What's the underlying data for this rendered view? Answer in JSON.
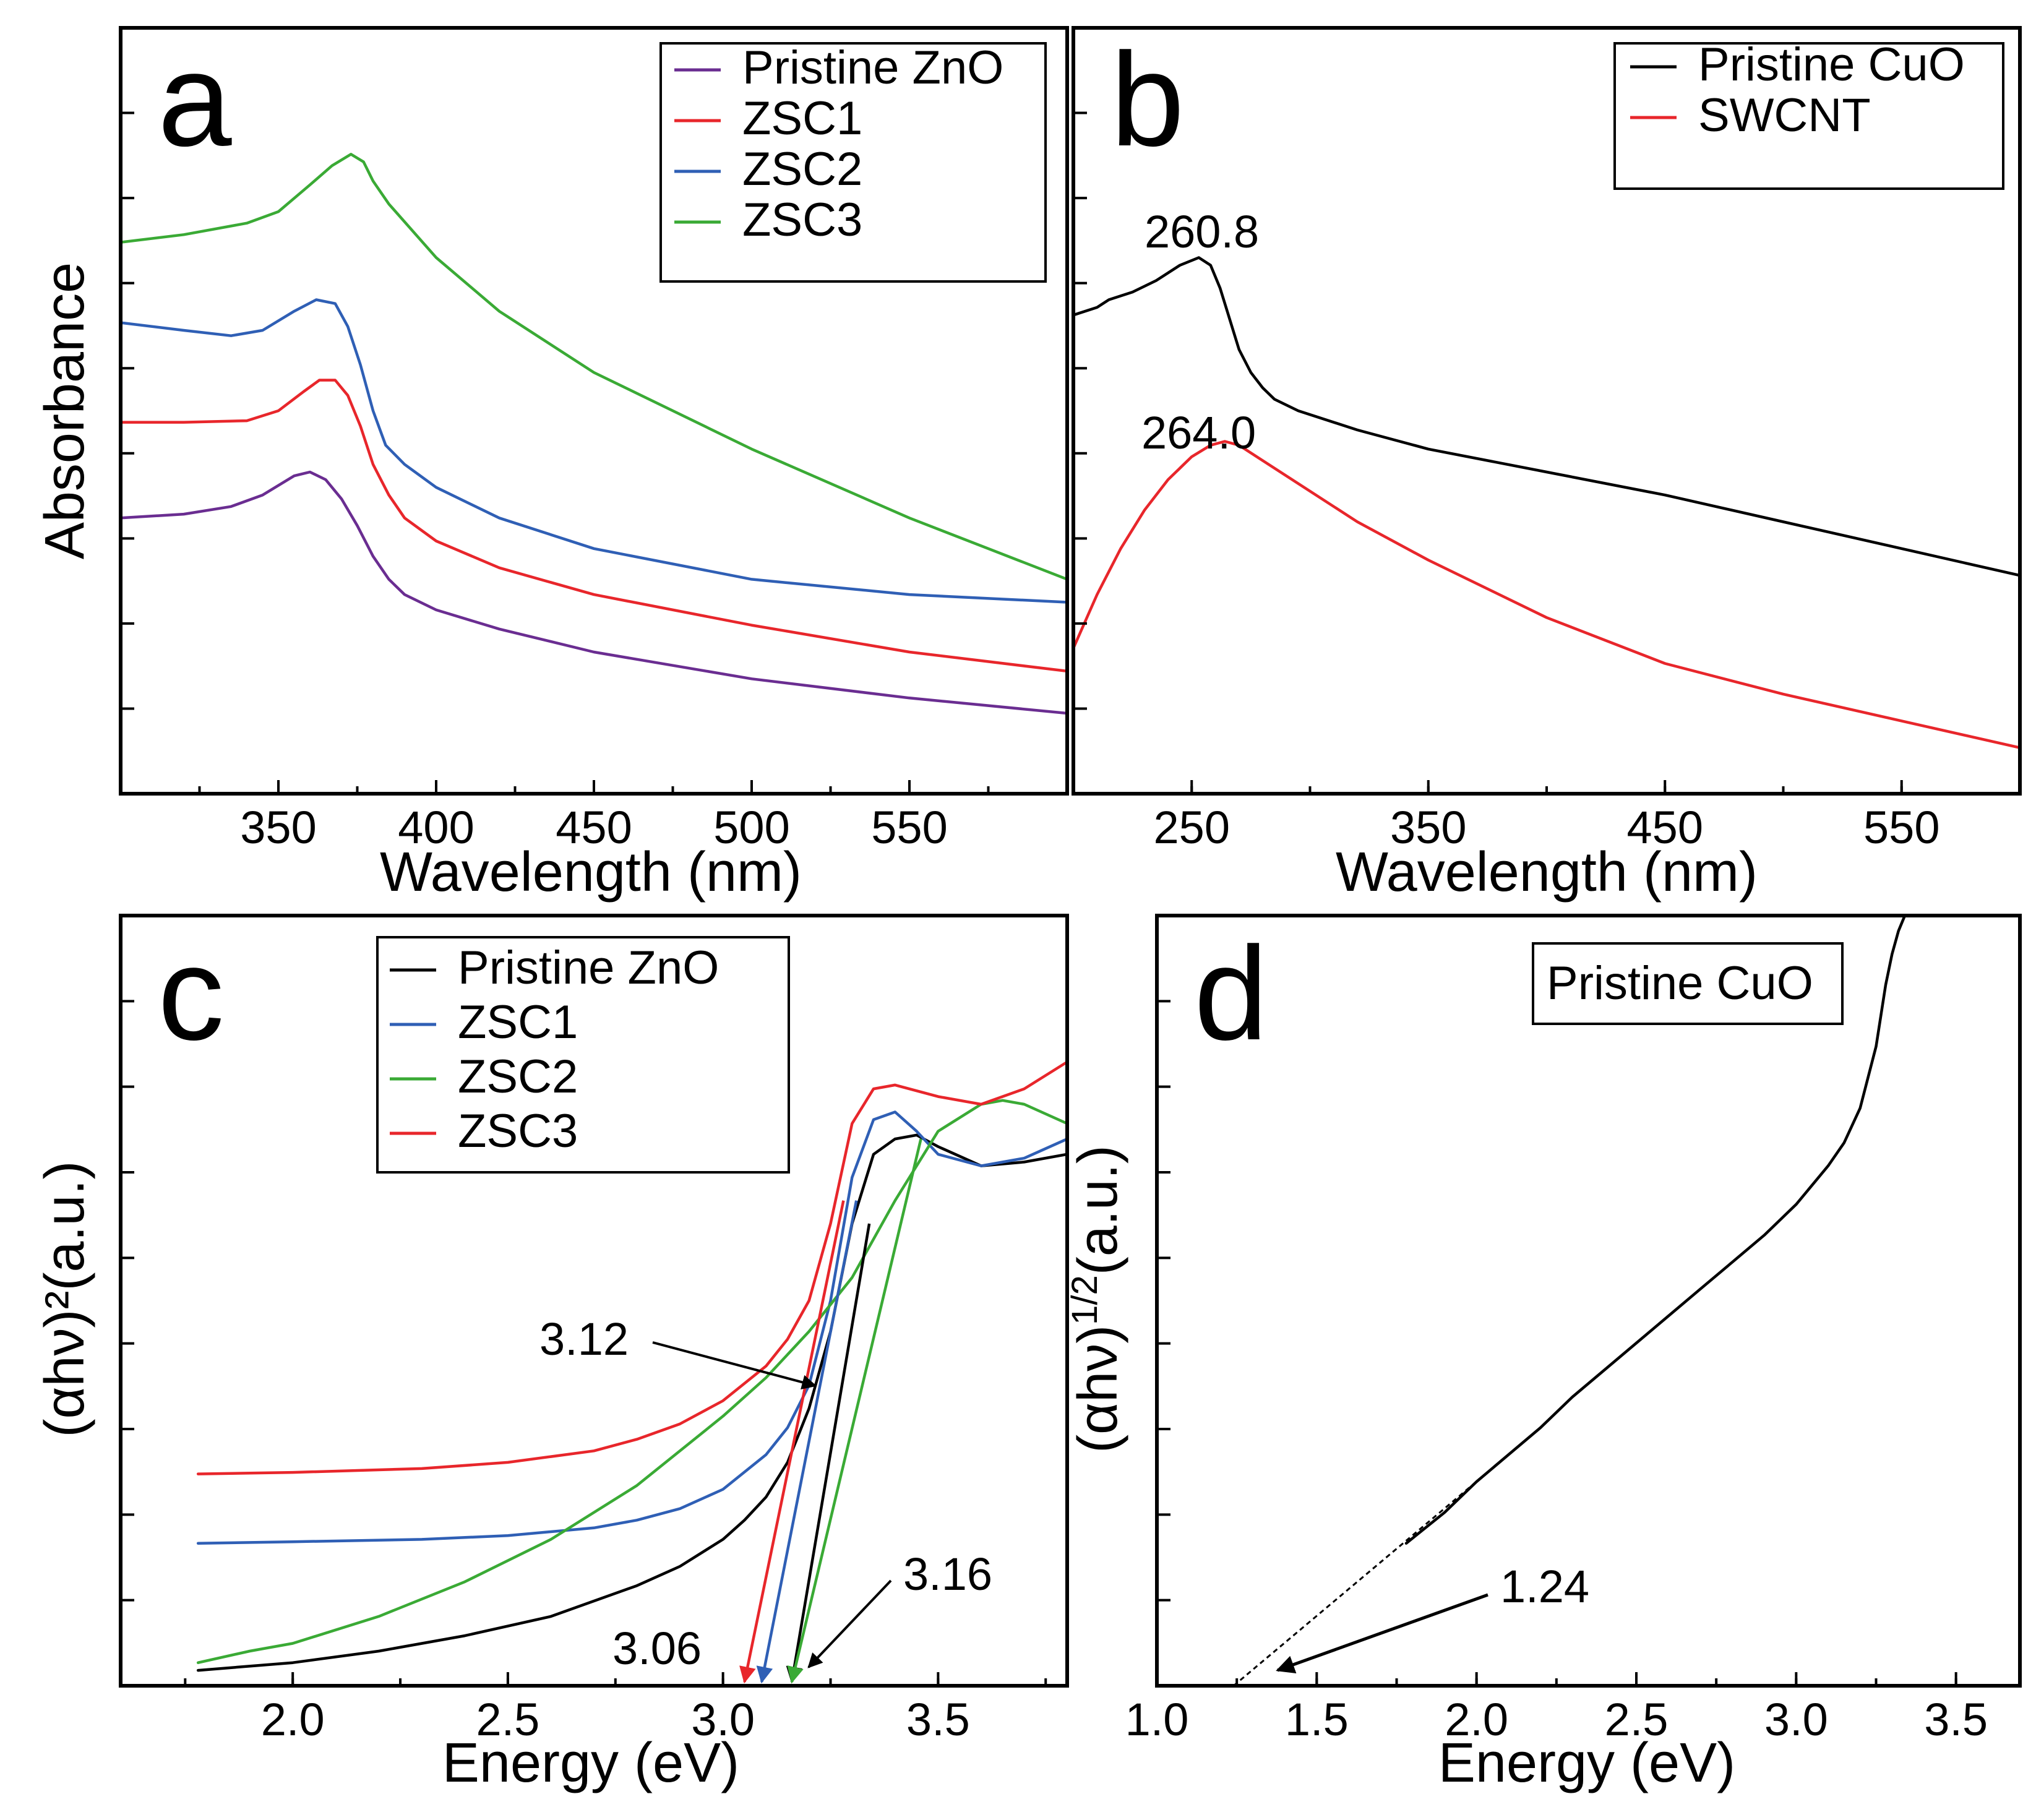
{
  "chart_data": [
    {
      "id": "a",
      "panel_label": "a",
      "type": "line",
      "xlabel": "Wavelength (nm)",
      "ylabel": "Absorbance",
      "xlim": [
        300,
        600
      ],
      "xticks": [
        350,
        400,
        450,
        500,
        550
      ],
      "ylim": [
        0,
        10
      ],
      "legend_position": "top-right",
      "series": [
        {
          "name": "Pristine ZnO",
          "color": "#6a2d91",
          "x": [
            300,
            320,
            335,
            345,
            355,
            360,
            365,
            370,
            375,
            380,
            385,
            390,
            400,
            420,
            450,
            500,
            550,
            600
          ],
          "y": [
            3.6,
            3.65,
            3.75,
            3.9,
            4.15,
            4.2,
            4.1,
            3.85,
            3.5,
            3.1,
            2.8,
            2.6,
            2.4,
            2.15,
            1.85,
            1.5,
            1.25,
            1.05
          ]
        },
        {
          "name": "ZSC1",
          "color": "#e8262b",
          "x": [
            300,
            320,
            340,
            350,
            358,
            363,
            368,
            372,
            376,
            380,
            385,
            390,
            400,
            420,
            450,
            500,
            550,
            600
          ],
          "y": [
            4.85,
            4.85,
            4.87,
            5.0,
            5.25,
            5.4,
            5.4,
            5.2,
            4.8,
            4.3,
            3.9,
            3.6,
            3.3,
            2.95,
            2.6,
            2.2,
            1.85,
            1.6
          ]
        },
        {
          "name": "ZSC2",
          "color": "#2f5fb5",
          "x": [
            300,
            320,
            335,
            345,
            355,
            362,
            368,
            372,
            376,
            380,
            384,
            390,
            400,
            420,
            450,
            500,
            550,
            600
          ],
          "y": [
            6.15,
            6.05,
            5.98,
            6.05,
            6.3,
            6.45,
            6.4,
            6.1,
            5.6,
            5.0,
            4.55,
            4.3,
            4.0,
            3.6,
            3.2,
            2.8,
            2.6,
            2.5
          ]
        },
        {
          "name": "ZSC3",
          "color": "#3aaa35",
          "x": [
            300,
            320,
            340,
            350,
            360,
            367,
            373,
            377,
            380,
            385,
            400,
            420,
            450,
            500,
            550,
            600
          ],
          "y": [
            7.2,
            7.3,
            7.45,
            7.6,
            7.95,
            8.2,
            8.35,
            8.25,
            8.0,
            7.7,
            7.0,
            6.3,
            5.5,
            4.5,
            3.6,
            2.8
          ]
        }
      ]
    },
    {
      "id": "b",
      "panel_label": "b",
      "type": "line",
      "xlabel": "Wavelength (nm)",
      "ylabel": "",
      "xlim": [
        200,
        600
      ],
      "xticks": [
        250,
        350,
        450,
        550
      ],
      "ylim": [
        0,
        10
      ],
      "legend_position": "top-right",
      "series": [
        {
          "name": "Pristine CuO",
          "color": "#000000",
          "x": [
            200,
            210,
            215,
            225,
            235,
            245,
            253,
            258,
            262,
            266,
            270,
            275,
            280,
            285,
            295,
            320,
            350,
            400,
            450,
            500,
            550,
            600
          ],
          "y": [
            6.25,
            6.35,
            6.45,
            6.55,
            6.7,
            6.9,
            7.0,
            6.9,
            6.6,
            6.2,
            5.8,
            5.5,
            5.3,
            5.15,
            5.0,
            4.75,
            4.5,
            4.2,
            3.9,
            3.55,
            3.2,
            2.85
          ]
        },
        {
          "name": "SWCNT",
          "color": "#e8262b",
          "x": [
            200,
            210,
            220,
            230,
            240,
            250,
            258,
            264,
            270,
            280,
            300,
            320,
            350,
            380,
            400,
            450,
            500,
            550,
            600
          ],
          "y": [
            1.9,
            2.6,
            3.2,
            3.7,
            4.1,
            4.4,
            4.55,
            4.6,
            4.55,
            4.35,
            3.95,
            3.55,
            3.05,
            2.6,
            2.3,
            1.7,
            1.3,
            0.95,
            0.6
          ]
        }
      ],
      "annotations": [
        {
          "text": "260.8",
          "x": 260.8
        },
        {
          "text": "264.0",
          "x": 264.0
        }
      ]
    },
    {
      "id": "c",
      "panel_label": "c",
      "type": "line",
      "xlabel": "Energy (eV)",
      "ylabel": "(αhν)²(a.u.)",
      "xlim": [
        1.6,
        3.8
      ],
      "xticks": [
        2.0,
        2.5,
        3.0,
        3.5
      ],
      "ylim": [
        0,
        10
      ],
      "legend_position": "top-left",
      "series": [
        {
          "name": "Pristine ZnO",
          "color": "#000000",
          "x": [
            1.78,
            2.0,
            2.2,
            2.4,
            2.6,
            2.8,
            2.9,
            3.0,
            3.05,
            3.1,
            3.15,
            3.2,
            3.25,
            3.3,
            3.35,
            3.4,
            3.45,
            3.5,
            3.6,
            3.7,
            3.8
          ],
          "y": [
            0.2,
            0.3,
            0.45,
            0.65,
            0.9,
            1.3,
            1.55,
            1.9,
            2.15,
            2.45,
            2.9,
            3.6,
            4.6,
            6.0,
            6.9,
            7.1,
            7.15,
            7.0,
            6.75,
            6.8,
            6.9
          ]
        },
        {
          "name": "ZSC1",
          "color": "#2f5fb5",
          "x": [
            1.78,
            2.0,
            2.3,
            2.5,
            2.7,
            2.8,
            2.9,
            3.0,
            3.1,
            3.15,
            3.2,
            3.25,
            3.3,
            3.35,
            3.4,
            3.45,
            3.5,
            3.6,
            3.7,
            3.8
          ],
          "y": [
            1.85,
            1.87,
            1.9,
            1.95,
            2.05,
            2.15,
            2.3,
            2.55,
            3.0,
            3.35,
            3.9,
            5.0,
            6.6,
            7.35,
            7.45,
            7.2,
            6.9,
            6.75,
            6.85,
            7.1
          ]
        },
        {
          "name": "ZSC2",
          "color": "#3aaa35",
          "x": [
            1.78,
            1.9,
            2.0,
            2.2,
            2.4,
            2.6,
            2.8,
            3.0,
            3.1,
            3.2,
            3.3,
            3.4,
            3.5,
            3.6,
            3.65,
            3.7,
            3.8
          ],
          "y": [
            0.3,
            0.45,
            0.55,
            0.9,
            1.35,
            1.9,
            2.6,
            3.5,
            4.0,
            4.6,
            5.3,
            6.3,
            7.2,
            7.55,
            7.6,
            7.55,
            7.3
          ]
        },
        {
          "name": "ZSC3",
          "color": "#e8262b",
          "x": [
            1.78,
            2.0,
            2.3,
            2.5,
            2.7,
            2.8,
            2.9,
            3.0,
            3.1,
            3.15,
            3.2,
            3.25,
            3.3,
            3.35,
            3.4,
            3.5,
            3.6,
            3.7,
            3.8
          ],
          "y": [
            2.75,
            2.77,
            2.82,
            2.9,
            3.05,
            3.2,
            3.4,
            3.7,
            4.15,
            4.5,
            5.0,
            6.0,
            7.3,
            7.75,
            7.8,
            7.65,
            7.55,
            7.75,
            8.1
          ]
        }
      ],
      "tangent_lines": [
        {
          "color": "#e8262b",
          "x": [
            3.05,
            3.28
          ],
          "y": [
            0.05,
            6.3
          ]
        },
        {
          "color": "#2f5fb5",
          "x": [
            3.09,
            3.31
          ],
          "y": [
            0.05,
            6.3
          ]
        },
        {
          "color": "#000000",
          "x": [
            3.16,
            3.34
          ],
          "y": [
            0.05,
            6.0
          ]
        },
        {
          "color": "#3aaa35",
          "x": [
            3.16,
            3.46
          ],
          "y": [
            0.05,
            7.1
          ]
        }
      ],
      "annotations": [
        {
          "text": "3.12",
          "x": 3.12
        },
        {
          "text": "3.06",
          "x": 3.06
        },
        {
          "text": "3.16",
          "x": 3.16
        }
      ]
    },
    {
      "id": "d",
      "panel_label": "d",
      "type": "line",
      "xlabel": "Energy (eV)",
      "ylabel": "(αhν)^1/2(a.u.)",
      "xlim": [
        1.0,
        3.7
      ],
      "xticks": [
        1.0,
        1.5,
        2.0,
        2.5,
        3.0,
        3.5
      ],
      "ylim": [
        0,
        10
      ],
      "legend_position": "top-center",
      "series": [
        {
          "name": "Pristine CuO",
          "color": "#000000",
          "x": [
            1.78,
            1.9,
            2.0,
            2.1,
            2.2,
            2.3,
            2.4,
            2.5,
            2.6,
            2.7,
            2.8,
            2.9,
            3.0,
            3.1,
            3.15,
            3.2,
            3.25,
            3.28,
            3.3,
            3.32,
            3.34
          ],
          "y": [
            1.85,
            2.25,
            2.65,
            3.0,
            3.35,
            3.75,
            4.1,
            4.45,
            4.8,
            5.15,
            5.5,
            5.85,
            6.25,
            6.75,
            7.05,
            7.5,
            8.3,
            9.1,
            9.5,
            9.8,
            10.0
          ]
        }
      ],
      "extrapolation": {
        "x": [
          1.24,
          2.1
        ],
        "y": [
          0.0,
          3.0
        ]
      },
      "annotations": [
        {
          "text": "1.24",
          "x": 1.24
        }
      ]
    }
  ]
}
